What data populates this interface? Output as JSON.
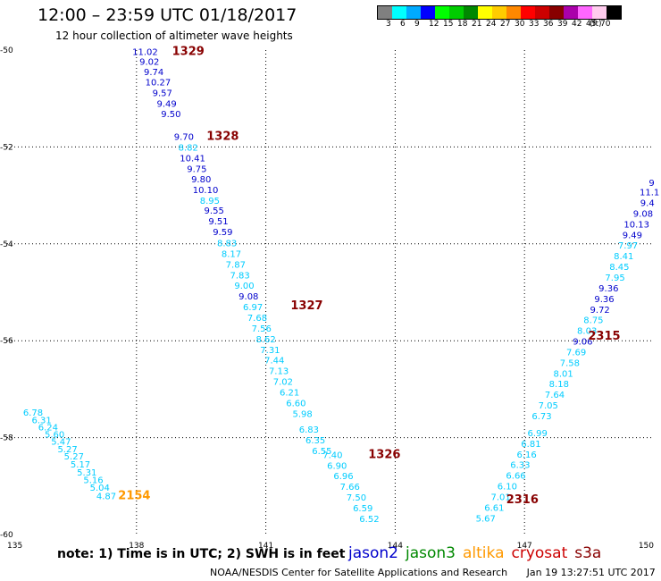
{
  "header": {
    "title": "12:00 – 23:59 UTC 01/18/2017",
    "subtitle": "12 hour collection of altimeter wave heights"
  },
  "legend": {
    "unit": "(ft)",
    "levels": [
      {
        "label": "3",
        "color": "#808080"
      },
      {
        "label": "6",
        "color": "#00ffff"
      },
      {
        "label": "9",
        "color": "#00aaff"
      },
      {
        "label": "12",
        "color": "#0000ff"
      },
      {
        "label": "15",
        "color": "#00ff00"
      },
      {
        "label": "18",
        "color": "#00cc00"
      },
      {
        "label": "21",
        "color": "#008800"
      },
      {
        "label": "24",
        "color": "#ffff00"
      },
      {
        "label": "27",
        "color": "#ffcc00"
      },
      {
        "label": "30",
        "color": "#ff8800"
      },
      {
        "label": "33",
        "color": "#ff0000"
      },
      {
        "label": "36",
        "color": "#cc0000"
      },
      {
        "label": "39",
        "color": "#880000"
      },
      {
        "label": "42",
        "color": "#aa00aa"
      },
      {
        "label": "45",
        "color": "#ff66ff"
      },
      {
        "label": "70",
        "color": "#ffccee"
      },
      {
        "label": "",
        "color": "#000000"
      }
    ]
  },
  "map": {
    "lon_ticks": [
      135,
      138,
      141,
      144,
      147,
      150
    ],
    "lat_ticks": [
      -50,
      -52,
      -54,
      -56,
      -58,
      -60
    ],
    "lon_range": [
      135,
      150
    ],
    "lat_range": [
      -50,
      -60
    ]
  },
  "colors": {
    "cyan": "#00ccff",
    "navy": "#0000cc",
    "orange": "#ff9900",
    "darkred": "#880000"
  },
  "tracks": [
    {
      "color": "cyan",
      "points": [
        {
          "lat": -57.55,
          "lon": 135.6,
          "v": "6.78"
        },
        {
          "lat": -57.7,
          "lon": 135.8,
          "v": "6.31"
        },
        {
          "lat": -57.85,
          "lon": 135.95,
          "v": "6.24"
        },
        {
          "lat": -58.0,
          "lon": 136.1,
          "v": "5.60"
        },
        {
          "lat": -58.15,
          "lon": 136.25,
          "v": "5.47"
        },
        {
          "lat": -58.3,
          "lon": 136.4,
          "v": "5.27"
        },
        {
          "lat": -58.45,
          "lon": 136.55,
          "v": "5.27"
        },
        {
          "lat": -58.62,
          "lon": 136.7,
          "v": "5.17"
        },
        {
          "lat": -58.78,
          "lon": 136.85,
          "v": "5.31"
        },
        {
          "lat": -58.94,
          "lon": 137.0,
          "v": "5.16"
        },
        {
          "lat": -59.1,
          "lon": 137.15,
          "v": "5.04"
        },
        {
          "lat": -59.27,
          "lon": 137.3,
          "v": "4.87"
        }
      ]
    },
    {
      "color": "navy",
      "points": [
        {
          "lat": -50.1,
          "lon": 138.2,
          "v": "11.02"
        },
        {
          "lat": -50.3,
          "lon": 138.3,
          "v": "9.02"
        },
        {
          "lat": -50.52,
          "lon": 138.4,
          "v": "9.74"
        },
        {
          "lat": -50.73,
          "lon": 138.5,
          "v": "10.27"
        },
        {
          "lat": -50.95,
          "lon": 138.6,
          "v": "9.57"
        },
        {
          "lat": -51.17,
          "lon": 138.7,
          "v": "9.49"
        },
        {
          "lat": -51.38,
          "lon": 138.8,
          "v": "9.50"
        },
        {
          "lat": -51.85,
          "lon": 139.1,
          "v": "9.70"
        }
      ]
    },
    {
      "color": "cyan",
      "points": [
        {
          "lat": -52.08,
          "lon": 139.2,
          "v": "8.82"
        }
      ]
    },
    {
      "color": "navy",
      "points": [
        {
          "lat": -52.3,
          "lon": 139.3,
          "v": "10.41"
        },
        {
          "lat": -52.52,
          "lon": 139.4,
          "v": "9.75"
        },
        {
          "lat": -52.73,
          "lon": 139.5,
          "v": "9.80"
        },
        {
          "lat": -52.95,
          "lon": 139.6,
          "v": "10.10"
        }
      ]
    },
    {
      "color": "cyan",
      "points": [
        {
          "lat": -53.17,
          "lon": 139.7,
          "v": "8.95"
        }
      ]
    },
    {
      "color": "navy",
      "points": [
        {
          "lat": -53.38,
          "lon": 139.8,
          "v": "9.55"
        },
        {
          "lat": -53.6,
          "lon": 139.9,
          "v": "9.51"
        },
        {
          "lat": -53.82,
          "lon": 140.0,
          "v": "9.59"
        }
      ]
    },
    {
      "color": "cyan",
      "points": [
        {
          "lat": -54.05,
          "lon": 140.1,
          "v": "8.83"
        },
        {
          "lat": -54.27,
          "lon": 140.2,
          "v": "8.17"
        },
        {
          "lat": -54.49,
          "lon": 140.3,
          "v": "7.87"
        },
        {
          "lat": -54.71,
          "lon": 140.4,
          "v": "7.83"
        },
        {
          "lat": -54.93,
          "lon": 140.5,
          "v": "9.00"
        }
      ]
    },
    {
      "color": "navy",
      "points": [
        {
          "lat": -55.15,
          "lon": 140.6,
          "v": "9.08"
        }
      ]
    },
    {
      "color": "cyan",
      "points": [
        {
          "lat": -55.37,
          "lon": 140.7,
          "v": "6.97"
        },
        {
          "lat": -55.59,
          "lon": 140.8,
          "v": "7.68"
        },
        {
          "lat": -55.81,
          "lon": 140.9,
          "v": "7.56"
        },
        {
          "lat": -56.03,
          "lon": 141.0,
          "v": "8.62"
        },
        {
          "lat": -56.25,
          "lon": 141.1,
          "v": "7.31"
        },
        {
          "lat": -56.47,
          "lon": 141.2,
          "v": "7.44"
        },
        {
          "lat": -56.69,
          "lon": 141.3,
          "v": "7.13"
        },
        {
          "lat": -56.91,
          "lon": 141.4,
          "v": "7.02"
        },
        {
          "lat": -57.13,
          "lon": 141.55,
          "v": "6.21"
        },
        {
          "lat": -57.35,
          "lon": 141.7,
          "v": "6.60"
        },
        {
          "lat": -57.57,
          "lon": 141.85,
          "v": "5.98"
        },
        {
          "lat": -57.9,
          "lon": 142.0,
          "v": "6.83"
        },
        {
          "lat": -58.12,
          "lon": 142.15,
          "v": "6.35"
        },
        {
          "lat": -58.34,
          "lon": 142.3,
          "v": "6.55"
        },
        {
          "lat": -58.42,
          "lon": 142.55,
          "v": "7.40"
        },
        {
          "lat": -58.64,
          "lon": 142.65,
          "v": "6.90"
        },
        {
          "lat": -58.86,
          "lon": 142.8,
          "v": "6.96"
        },
        {
          "lat": -59.08,
          "lon": 142.95,
          "v": "7.66"
        },
        {
          "lat": -59.3,
          "lon": 143.1,
          "v": "7.50"
        },
        {
          "lat": -59.52,
          "lon": 143.25,
          "v": "6.59"
        },
        {
          "lat": -59.74,
          "lon": 143.4,
          "v": "6.52"
        }
      ]
    },
    {
      "color": "navy",
      "points": [
        {
          "lat": -52.8,
          "lon": 149.95,
          "v": "9"
        },
        {
          "lat": -53.0,
          "lon": 149.9,
          "v": "11.1"
        },
        {
          "lat": -53.22,
          "lon": 149.85,
          "v": "9.4"
        },
        {
          "lat": -53.44,
          "lon": 149.75,
          "v": "9.08"
        },
        {
          "lat": -53.66,
          "lon": 149.6,
          "v": "10.13"
        },
        {
          "lat": -53.88,
          "lon": 149.5,
          "v": "9.49"
        }
      ]
    },
    {
      "color": "cyan",
      "points": [
        {
          "lat": -54.1,
          "lon": 149.4,
          "v": "7.97"
        },
        {
          "lat": -54.32,
          "lon": 149.3,
          "v": "8.41"
        },
        {
          "lat": -54.54,
          "lon": 149.2,
          "v": "8.45"
        },
        {
          "lat": -54.76,
          "lon": 149.1,
          "v": "7.95"
        }
      ]
    },
    {
      "color": "navy",
      "points": [
        {
          "lat": -54.98,
          "lon": 148.95,
          "v": "9.36"
        },
        {
          "lat": -55.2,
          "lon": 148.85,
          "v": "9.36"
        },
        {
          "lat": -55.42,
          "lon": 148.75,
          "v": "9.72"
        }
      ]
    },
    {
      "color": "cyan",
      "points": [
        {
          "lat": -55.64,
          "lon": 148.6,
          "v": "8.75"
        },
        {
          "lat": -55.86,
          "lon": 148.45,
          "v": "8.03"
        }
      ]
    },
    {
      "color": "navy",
      "points": [
        {
          "lat": -56.08,
          "lon": 148.35,
          "v": "9.06"
        }
      ]
    },
    {
      "color": "cyan",
      "points": [
        {
          "lat": -56.3,
          "lon": 148.2,
          "v": "7.69"
        },
        {
          "lat": -56.52,
          "lon": 148.05,
          "v": "7.58"
        },
        {
          "lat": -56.74,
          "lon": 147.9,
          "v": "8.01"
        },
        {
          "lat": -56.96,
          "lon": 147.8,
          "v": "8.18"
        },
        {
          "lat": -57.18,
          "lon": 147.7,
          "v": "7.64"
        },
        {
          "lat": -57.4,
          "lon": 147.55,
          "v": "7.05"
        },
        {
          "lat": -57.62,
          "lon": 147.4,
          "v": "6.73"
        },
        {
          "lat": -57.97,
          "lon": 147.3,
          "v": "6.99"
        },
        {
          "lat": -58.19,
          "lon": 147.15,
          "v": "6.81"
        },
        {
          "lat": -58.41,
          "lon": 147.05,
          "v": "6.16"
        },
        {
          "lat": -58.63,
          "lon": 146.9,
          "v": "6.33"
        },
        {
          "lat": -58.85,
          "lon": 146.8,
          "v": "6.66"
        },
        {
          "lat": -59.07,
          "lon": 146.6,
          "v": "6.10"
        },
        {
          "lat": -59.29,
          "lon": 146.45,
          "v": "7.01"
        },
        {
          "lat": -59.51,
          "lon": 146.3,
          "v": "6.61"
        },
        {
          "lat": -59.73,
          "lon": 146.1,
          "v": "5.67"
        }
      ]
    }
  ],
  "time_labels": [
    {
      "lat": -50.1,
      "lon": 139.2,
      "text": "1329",
      "color": "darkred"
    },
    {
      "lat": -51.85,
      "lon": 140.0,
      "text": "1328",
      "color": "darkred"
    },
    {
      "lat": -55.35,
      "lon": 141.95,
      "text": "1327",
      "color": "darkred"
    },
    {
      "lat": -58.42,
      "lon": 143.75,
      "text": "1326",
      "color": "darkred"
    },
    {
      "lat": -59.27,
      "lon": 137.95,
      "text": "2154",
      "color": "orange"
    },
    {
      "lat": -55.98,
      "lon": 148.85,
      "text": "2315",
      "color": "darkred"
    },
    {
      "lat": -59.35,
      "lon": 146.95,
      "text": "2316",
      "color": "darkred"
    }
  ],
  "footer": {
    "note": "note: 1) Time is in UTC; 2) SWH is in feet",
    "satellites": [
      {
        "name": "jason2",
        "color": "#0000cc"
      },
      {
        "name": "jason3",
        "color": "#008800"
      },
      {
        "name": "altika",
        "color": "#ff9900"
      },
      {
        "name": "cryosat",
        "color": "#cc0000"
      },
      {
        "name": "s3a",
        "color": "#880000"
      }
    ],
    "credit": "NOAA/NESDIS Center for Satellite Applications and Research",
    "timestamp": "Jan 19 13:27:51 UTC 2017"
  }
}
